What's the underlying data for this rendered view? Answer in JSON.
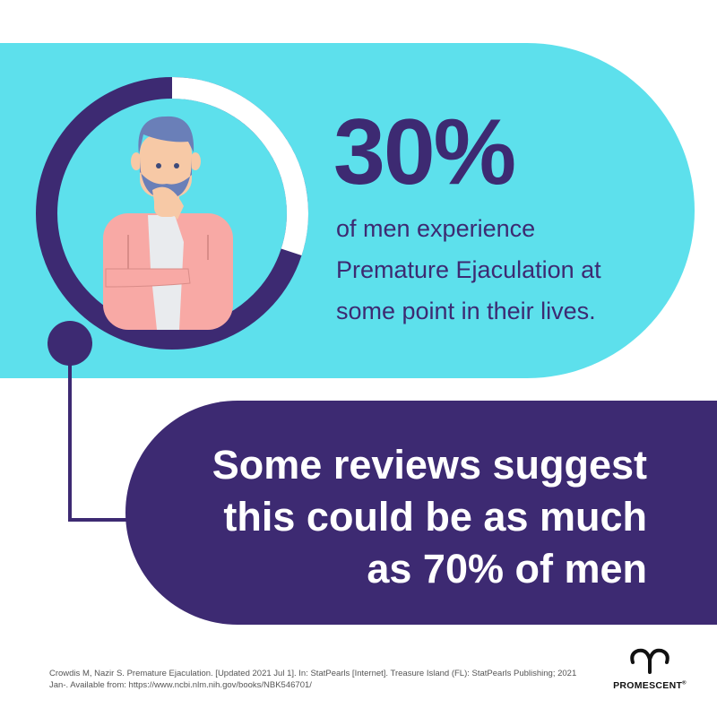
{
  "stat": {
    "value": "30%",
    "ring_fraction": 0.3,
    "lines": [
      "of men experience",
      "Premature Ejaculation at",
      "some point in their lives."
    ]
  },
  "claim": {
    "lines": [
      "Some reviews suggest",
      "this could be as much",
      "as 70% of men"
    ]
  },
  "citation": {
    "lines": [
      "Crowdis M, Nazir S. Premature Ejaculation. [Updated 2021 Jul 1]. In: StatPearls [Internet]. Treasure Island (FL): StatPearls Publishing; 2021",
      "Jan-. Available from: https://www.ncbi.nlm.nih.gov/books/NBK546701/"
    ]
  },
  "brand": {
    "name": "PROMESCENT",
    "mark": "®"
  },
  "colors": {
    "cyan": "#5de0ec",
    "purple": "#3d2a72",
    "white": "#ffffff"
  }
}
